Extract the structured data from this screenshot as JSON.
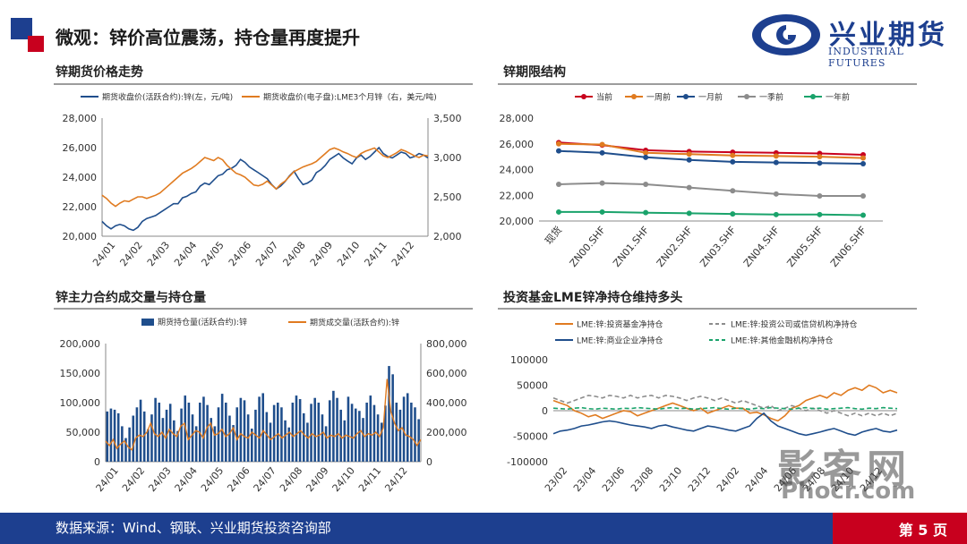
{
  "header": {
    "title": "微观：锌价高位震荡，持仓量再度提升"
  },
  "logo": {
    "cn": "兴业期货",
    "en": "INDUSTRIAL FUTURES"
  },
  "footer": {
    "source": "数据来源：Wind、钢联、兴业期货投资咨询部",
    "page": "第 5 页"
  },
  "watermark": {
    "line1": "影客网",
    "line2": "Phocr.com"
  },
  "colors": {
    "navy": "#1d3f8f",
    "red": "#c8001e",
    "blue": "#1f4e8c",
    "orange": "#e07b20",
    "gray": "#8c8c8c",
    "green": "#1aa36b"
  },
  "panels": {
    "p1": {
      "title": "锌期货价格走势"
    },
    "p2": {
      "title": "锌期限结构"
    },
    "p3": {
      "title": "锌主力合约成交量与持仓量"
    },
    "p4": {
      "title": "投资基金LME锌净持仓维持多头"
    }
  },
  "chart_data": [
    {
      "id": "price",
      "type": "line",
      "legend": [
        "期货收盘价(活跃合约):锌(左，元/吨)",
        "期货收盘价(电子盘):LME3个月锌（右，美元/吨)"
      ],
      "x_ticks": [
        "24/01",
        "24/02",
        "24/03",
        "24/04",
        "24/05",
        "24/06",
        "24/07",
        "24/08",
        "24/09",
        "24/10",
        "24/11",
        "24/12"
      ],
      "y_left": {
        "min": 20000,
        "max": 28000,
        "ticks": [
          "20,000",
          "22,000",
          "24,000",
          "26,000",
          "28,000"
        ]
      },
      "y_right": {
        "min": 2000,
        "max": 3500,
        "ticks": [
          "2,000",
          "2,500",
          "3,000",
          "3,500"
        ]
      },
      "series": [
        {
          "name": "期货收盘价(活跃合约):锌(左，元/吨)",
          "axis": "left",
          "color": "#1f4e8c",
          "values": [
            21000,
            20700,
            20500,
            20700,
            20800,
            20700,
            20500,
            20400,
            20600,
            21000,
            21200,
            21300,
            21400,
            21600,
            21800,
            22000,
            22200,
            22200,
            22600,
            22700,
            22900,
            23000,
            23400,
            23600,
            23500,
            23800,
            24100,
            24200,
            24500,
            24600,
            24800,
            25200,
            25000,
            24700,
            24500,
            24300,
            24100,
            23900,
            23500,
            23200,
            23400,
            23700,
            24100,
            24400,
            23900,
            23500,
            23600,
            23800,
            24300,
            24500,
            24800,
            25200,
            25400,
            25600,
            25300,
            25100,
            24900,
            25300,
            25500,
            25200,
            25400,
            25700,
            26000,
            25600,
            25400,
            25300,
            25500,
            25700,
            25600,
            25300,
            25400,
            25600,
            25500,
            25300
          ]
        },
        {
          "name": "期货收盘价(电子盘):LME3个月锌（右，美元/吨)",
          "axis": "right",
          "color": "#e07b20",
          "values": [
            2520,
            2480,
            2420,
            2380,
            2420,
            2450,
            2440,
            2470,
            2500,
            2500,
            2480,
            2500,
            2520,
            2550,
            2600,
            2650,
            2700,
            2750,
            2800,
            2830,
            2860,
            2900,
            2950,
            3000,
            2980,
            2960,
            3000,
            2970,
            2900,
            2850,
            2800,
            2780,
            2750,
            2700,
            2650,
            2640,
            2660,
            2700,
            2650,
            2600,
            2660,
            2700,
            2760,
            2820,
            2850,
            2880,
            2900,
            2920,
            2950,
            3000,
            3050,
            3100,
            3120,
            3100,
            3070,
            3050,
            3020,
            3000,
            3050,
            3080,
            3100,
            3120,
            3070,
            3020,
            3000,
            3030,
            3060,
            3100,
            3080,
            3050,
            3020,
            3000,
            3030,
            3020
          ]
        }
      ]
    },
    {
      "id": "term",
      "type": "line",
      "legend": [
        "当前",
        "一周前",
        "一月前",
        "一季前",
        "一年前"
      ],
      "categories": [
        "现货",
        "ZN00.SHF",
        "ZN01.SHF",
        "ZN02.SHF",
        "ZN03.SHF",
        "ZN04.SHF",
        "ZN05.SHF",
        "ZN06.SHF"
      ],
      "y": {
        "min": 20000,
        "max": 28000,
        "ticks": [
          "20,000",
          "22,000",
          "24,000",
          "26,000",
          "28,000"
        ]
      },
      "series": [
        {
          "name": "当前",
          "color": "#c8001e",
          "values": [
            26100,
            25900,
            25500,
            25400,
            25350,
            25300,
            25250,
            25150
          ]
        },
        {
          "name": "一周前",
          "color": "#e07b20",
          "values": [
            26000,
            25950,
            25300,
            25200,
            25100,
            25050,
            25000,
            24900
          ]
        },
        {
          "name": "一月前",
          "color": "#1f4e8c",
          "values": [
            25450,
            25300,
            24950,
            24750,
            24600,
            24550,
            24500,
            24450
          ]
        },
        {
          "name": "一季前",
          "color": "#8c8c8c",
          "values": [
            22850,
            22950,
            22850,
            22600,
            22350,
            22100,
            21950,
            21950
          ]
        },
        {
          "name": "一年前",
          "color": "#1aa36b",
          "values": [
            20700,
            20700,
            20650,
            20600,
            20550,
            20500,
            20500,
            20450
          ]
        }
      ]
    },
    {
      "id": "volume",
      "type": "bar",
      "legend": [
        "期货持仓量(活跃合约):锌",
        "期货成交量(活跃合约):锌"
      ],
      "x_ticks": [
        "24/01",
        "24/02",
        "24/03",
        "24/04",
        "24/05",
        "24/06",
        "24/07",
        "24/08",
        "24/09",
        "24/10",
        "24/11",
        "24/12"
      ],
      "y_left": {
        "min": 0,
        "max": 200000,
        "ticks": [
          "0",
          "50,000",
          "100,000",
          "150,000",
          "200,000"
        ]
      },
      "y_right": {
        "min": 0,
        "max": 800000,
        "ticks": [
          "0",
          "200,000",
          "400,000",
          "600,000",
          "800,000"
        ]
      },
      "series": [
        {
          "name": "期货持仓量(活跃合约):锌",
          "axis": "left",
          "color": "#1f4e8c",
          "values": [
            85000,
            90000,
            88000,
            82000,
            60000,
            40000,
            58000,
            78000,
            92000,
            105000,
            85000,
            55000,
            80000,
            108000,
            100000,
            74000,
            88000,
            98000,
            70000,
            52000,
            90000,
            112000,
            100000,
            80000,
            60000,
            100000,
            110000,
            96000,
            74000,
            60000,
            92000,
            115000,
            100000,
            78000,
            62000,
            92000,
            108000,
            104000,
            80000,
            56000,
            88000,
            110000,
            116000,
            84000,
            66000,
            96000,
            100000,
            92000,
            70000,
            58000,
            100000,
            112000,
            106000,
            82000,
            66000,
            98000,
            108000,
            100000,
            80000,
            60000,
            104000,
            120000,
            108000,
            88000,
            70000,
            110000,
            98000,
            90000,
            86000,
            74000,
            100000,
            112000,
            96000,
            80000,
            66000,
            95000,
            162000,
            148000,
            100000,
            88000,
            110000,
            116000,
            100000,
            92000,
            72000
          ]
        },
        {
          "name": "期货成交量(活跃合约):锌",
          "axis": "right",
          "color": "#e07b20",
          "values": [
            140000,
            110000,
            150000,
            90000,
            120000,
            140000,
            100000,
            80000,
            160000,
            180000,
            170000,
            200000,
            260000,
            190000,
            170000,
            200000,
            160000,
            220000,
            190000,
            170000,
            240000,
            260000,
            150000,
            180000,
            210000,
            200000,
            160000,
            230000,
            260000,
            180000,
            190000,
            220000,
            170000,
            190000,
            230000,
            150000,
            190000,
            170000,
            160000,
            200000,
            180000,
            160000,
            210000,
            180000,
            150000,
            170000,
            190000,
            160000,
            180000,
            200000,
            170000,
            190000,
            210000,
            180000,
            160000,
            190000,
            170000,
            180000,
            200000,
            160000,
            180000,
            170000,
            190000,
            160000,
            180000,
            170000,
            160000,
            190000,
            210000,
            170000,
            190000,
            180000,
            200000,
            170000,
            230000,
            560000,
            340000,
            260000,
            210000,
            230000,
            180000,
            170000,
            150000,
            110000,
            150000
          ]
        }
      ]
    },
    {
      "id": "lme",
      "type": "line",
      "legend": [
        "LME:锌:投资基金净持仓",
        "LME:锌:投资公司或信贷机构净持仓",
        "LME:锌:商业企业净持仓",
        "LME:锌:其他金融机构净持仓"
      ],
      "x_ticks": [
        "23/02",
        "23/04",
        "23/06",
        "23/08",
        "23/10",
        "23/12",
        "24/02",
        "24/04",
        "24/06",
        "24/08",
        "24/10",
        "24/12"
      ],
      "y": {
        "min": -100000,
        "max": 100000,
        "ticks": [
          "-100000",
          "-50000",
          "0",
          "50000",
          "100000"
        ]
      },
      "series": [
        {
          "name": "LME:锌:投资基金净持仓",
          "color": "#e07b20",
          "dash": false,
          "values": [
            20000,
            15000,
            10000,
            0,
            -5000,
            -12000,
            -8000,
            -15000,
            -10000,
            -5000,
            0,
            -2000,
            -10000,
            -5000,
            0,
            5000,
            10000,
            15000,
            10000,
            5000,
            0,
            5000,
            -5000,
            0,
            5000,
            10000,
            5000,
            5000,
            -5000,
            -3000,
            -8000,
            -15000,
            -20000,
            -10000,
            5000,
            10000,
            20000,
            25000,
            30000,
            25000,
            35000,
            30000,
            40000,
            45000,
            40000,
            50000,
            45000,
            35000,
            40000,
            35000
          ]
        },
        {
          "name": "LME:锌:投资公司或信贷机构净持仓",
          "color": "#8c8c8c",
          "dash": true,
          "values": [
            25000,
            20000,
            15000,
            20000,
            25000,
            30000,
            28000,
            25000,
            30000,
            28000,
            25000,
            30000,
            25000,
            28000,
            30000,
            25000,
            30000,
            28000,
            25000,
            20000,
            25000,
            28000,
            25000,
            20000,
            25000,
            20000,
            15000,
            20000,
            15000,
            10000,
            5000,
            10000,
            0,
            5000,
            10000,
            5000,
            0,
            5000,
            0,
            -5000,
            0,
            -5000,
            -10000,
            -5000,
            -10000,
            -5000,
            -10000,
            -5000,
            -10000,
            -5000
          ]
        },
        {
          "name": "LME:锌:商业企业净持仓",
          "color": "#1f4e8c",
          "dash": false,
          "values": [
            -45000,
            -40000,
            -38000,
            -35000,
            -30000,
            -28000,
            -25000,
            -22000,
            -20000,
            -22000,
            -25000,
            -28000,
            -30000,
            -32000,
            -35000,
            -30000,
            -28000,
            -32000,
            -35000,
            -38000,
            -40000,
            -35000,
            -30000,
            -32000,
            -35000,
            -38000,
            -40000,
            -35000,
            -30000,
            -15000,
            -5000,
            -20000,
            -30000,
            -35000,
            -40000,
            -45000,
            -48000,
            -45000,
            -42000,
            -38000,
            -35000,
            -40000,
            -45000,
            -48000,
            -42000,
            -38000,
            -35000,
            -40000,
            -42000,
            -38000
          ]
        },
        {
          "name": "LME:锌:其他金融机构净持仓",
          "color": "#1aa36b",
          "dash": true,
          "values": [
            5000,
            4000,
            3000,
            5000,
            6000,
            4000,
            3000,
            5000,
            4000,
            3000,
            5000,
            4000,
            6000,
            5000,
            4000,
            3000,
            5000,
            6000,
            4000,
            5000,
            3000,
            4000,
            5000,
            6000,
            4000,
            3000,
            5000,
            4000,
            3000,
            5000,
            4000,
            6000,
            5000,
            4000,
            3000,
            5000,
            6000,
            4000,
            5000,
            3000,
            4000,
            5000,
            6000,
            4000,
            3000,
            5000,
            4000,
            6000,
            5000,
            4000
          ]
        }
      ]
    }
  ]
}
